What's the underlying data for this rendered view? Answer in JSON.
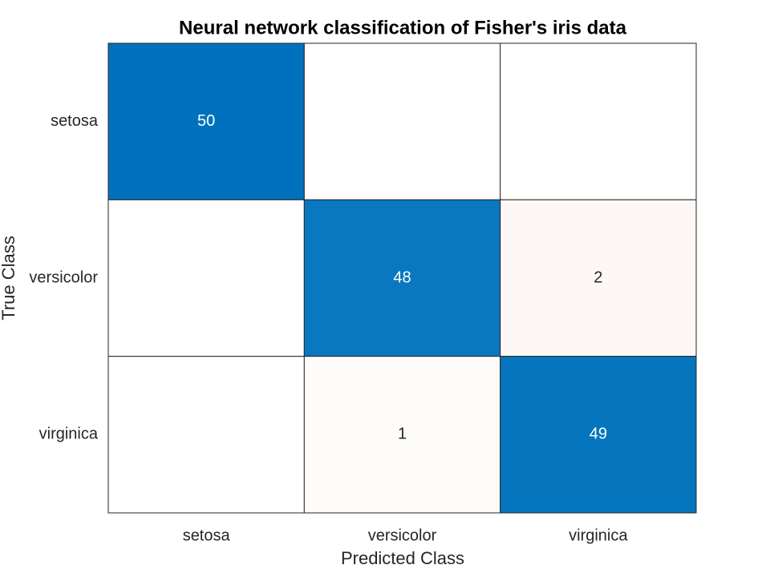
{
  "chart_data": {
    "type": "confusion_matrix",
    "title": "Neural network classification of Fisher's iris data",
    "xlabel": "Predicted Class",
    "ylabel": "True Class",
    "x_categories": [
      "setosa",
      "versicolor",
      "virginica"
    ],
    "y_categories": [
      "setosa",
      "versicolor",
      "virginica"
    ],
    "values": [
      [
        50,
        0,
        0
      ],
      [
        0,
        48,
        2
      ],
      [
        0,
        1,
        49
      ]
    ],
    "diagonal_color": "#0072bd",
    "off_diagonal_color": "#d95319"
  }
}
